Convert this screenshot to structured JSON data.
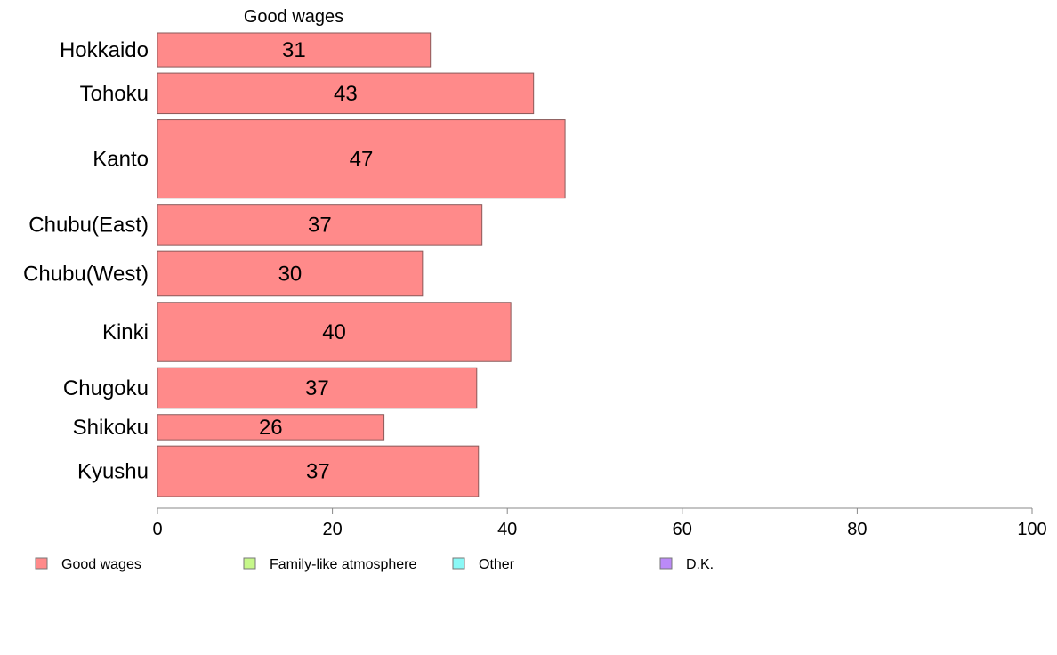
{
  "chart_data": {
    "type": "bar",
    "orientation": "horizontal",
    "series_title": "Good wages",
    "categories": [
      "Hokkaido",
      "Tohoku",
      "Kanto",
      "Chubu(East)",
      "Chubu(West)",
      "Kinki",
      "Chugoku",
      "Shikoku",
      "Kyushu"
    ],
    "values": [
      31,
      43,
      47,
      37,
      30,
      40,
      37,
      26,
      37
    ],
    "bar_values": [
      31.2,
      43,
      46.6,
      37.1,
      30.3,
      40.4,
      36.5,
      25.9,
      36.7
    ],
    "relative_widths": [
      0.67,
      0.8,
      1.55,
      0.8,
      0.89,
      1.17,
      0.8,
      0.5,
      1.0
    ],
    "xlim": [
      0,
      100
    ],
    "xticks": [
      "0",
      "20",
      "40",
      "60",
      "80",
      "100"
    ],
    "legend": [
      {
        "label": "Good wages",
        "color": "#ff8a8a"
      },
      {
        "label": "Family-like atmosphere",
        "color": "#c6f78a"
      },
      {
        "label": "Other",
        "color": "#8af8f6"
      },
      {
        "label": "D.K.",
        "color": "#bb8af7"
      }
    ],
    "legend_position": "bottom",
    "bar_color": "#ff8a8a",
    "grid": false
  }
}
